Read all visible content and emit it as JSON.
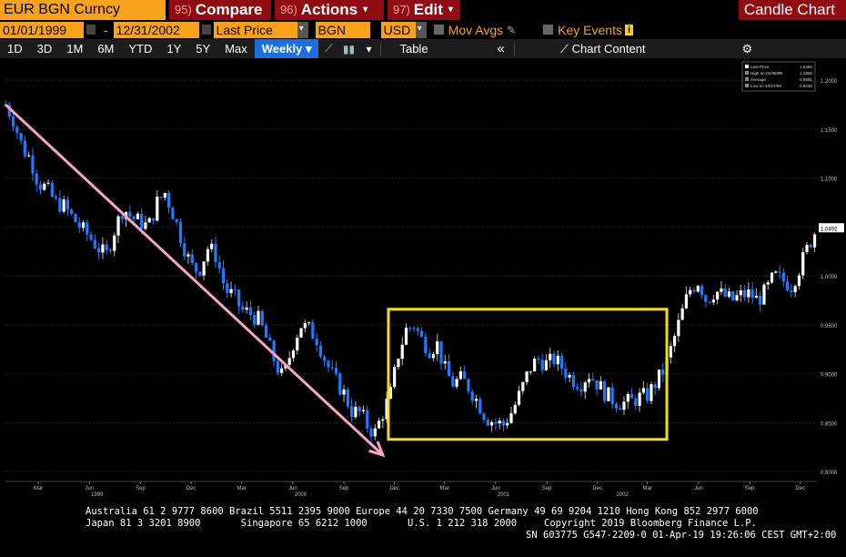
{
  "header": {
    "ticker": "EUR BGN Curncy",
    "compare": {
      "num": "95)",
      "label": "Compare"
    },
    "actions": {
      "num": "96)",
      "label": "Actions"
    },
    "edit": {
      "num": "97)",
      "label": "Edit"
    },
    "chart_type": "Candle Chart"
  },
  "controls": {
    "start_date": "01/01/1999",
    "end_date": "12/31/2002",
    "field": "Last Price",
    "security": "BGN",
    "currency": "USD",
    "mov_avgs": "Mov Avgs",
    "key_events": "Key Events",
    "key_events_badge": "i"
  },
  "toolbar": {
    "periods": [
      "1D",
      "3D",
      "1M",
      "6M",
      "YTD",
      "1Y",
      "5Y",
      "Max"
    ],
    "frequency": "Weekly",
    "table": "Table",
    "collapse": "«",
    "chart_content": "Chart Content",
    "settings": "⚙"
  },
  "legend": [
    "Last Price",
    "High on 01/08/99",
    "Average",
    "Low on 10/27/00"
  ],
  "legend_values": [
    "1.0492",
    "1.1900",
    "0.9591",
    "0.8230"
  ],
  "last_price_tag": "1.0492",
  "colors": {
    "up": "#ffffff",
    "down": "#1e7bff",
    "trend_arrow": "#f5a3c7",
    "box": "#f5e000",
    "header_orange": "#f7a21b",
    "header_red": "#8e0c12"
  },
  "footer": {
    "line1": "Australia 61 2 9777 8600 Brazil 5511 2395 9000 Europe 44 20 7330 7500 Germany 49 69 9204 1210 Hong Kong 852 2977 6000",
    "line2a": "Japan 81 3 3201 8900       Singapore 65 6212 1000       U.S. 1 212 318 2000",
    "line2b": "Copyright 2019 Bloomberg Finance L.P.",
    "line3": "SN 603775 G547-2209-0 01-Apr-19 19:26:06 CEST GMT+2:00"
  },
  "chart_data": {
    "type": "candlestick",
    "series": "EUR BGN Curncy weekly",
    "ylim": [
      0.79,
      1.215
    ],
    "yticks": [
      0.8,
      0.85,
      0.9,
      0.95,
      1.0,
      1.05,
      1.1,
      1.15,
      1.2
    ],
    "ytick_labels": [
      "0.8000",
      "0.8500",
      "0.9000",
      "0.9500",
      "1.0000",
      "1.0500",
      "1.1000",
      "1.1500",
      "1.2000"
    ],
    "xlim": [
      "1999-01-01",
      "2002-12-31"
    ],
    "month_ticks": [
      {
        "date": "1999-03-01",
        "label": "Mar"
      },
      {
        "date": "1999-06-01",
        "label": "Jun"
      },
      {
        "date": "1999-09-01",
        "label": "Sep"
      },
      {
        "date": "1999-12-01",
        "label": "Dec"
      },
      {
        "date": "2000-03-01",
        "label": "Mar"
      },
      {
        "date": "2000-06-01",
        "label": "Jun"
      },
      {
        "date": "2000-09-01",
        "label": "Sep"
      },
      {
        "date": "2000-12-01",
        "label": "Dec"
      },
      {
        "date": "2001-03-01",
        "label": "Mar"
      },
      {
        "date": "2001-06-01",
        "label": "Jun"
      },
      {
        "date": "2001-09-01",
        "label": "Sep"
      },
      {
        "date": "2001-12-01",
        "label": "Dec"
      },
      {
        "date": "2002-03-01",
        "label": "Mar"
      },
      {
        "date": "2002-06-01",
        "label": "Jun"
      },
      {
        "date": "2002-09-01",
        "label": "Sep"
      },
      {
        "date": "2002-12-01",
        "label": "Dec"
      }
    ],
    "year_ticks": [
      {
        "date": "1999-06-15",
        "label": "1999"
      },
      {
        "date": "2000-06-15",
        "label": "2000"
      },
      {
        "date": "2001-06-15",
        "label": "2001"
      },
      {
        "date": "2002-01-15",
        "label": "2002"
      }
    ],
    "close_path": [
      [
        "1999-01-01",
        1.175
      ],
      [
        "1999-01-15",
        1.16
      ],
      [
        "1999-02-01",
        1.13
      ],
      [
        "1999-02-15",
        1.12
      ],
      [
        "1999-03-01",
        1.095
      ],
      [
        "1999-03-15",
        1.09
      ],
      [
        "1999-04-01",
        1.075
      ],
      [
        "1999-04-15",
        1.072
      ],
      [
        "1999-05-01",
        1.06
      ],
      [
        "1999-05-15",
        1.05
      ],
      [
        "1999-06-01",
        1.04
      ],
      [
        "1999-06-15",
        1.03
      ],
      [
        "1999-07-01",
        1.02
      ],
      [
        "1999-07-15",
        1.045
      ],
      [
        "1999-08-01",
        1.07
      ],
      [
        "1999-08-15",
        1.06
      ],
      [
        "1999-09-01",
        1.055
      ],
      [
        "1999-09-15",
        1.05
      ],
      [
        "1999-10-01",
        1.075
      ],
      [
        "1999-10-15",
        1.085
      ],
      [
        "1999-11-01",
        1.06
      ],
      [
        "1999-11-15",
        1.035
      ],
      [
        "1999-12-01",
        1.01
      ],
      [
        "1999-12-15",
        1.005
      ],
      [
        "2000-01-01",
        1.03
      ],
      [
        "2000-01-15",
        1.02
      ],
      [
        "2000-02-01",
        0.985
      ],
      [
        "2000-02-15",
        0.98
      ],
      [
        "2000-03-01",
        0.965
      ],
      [
        "2000-03-15",
        0.962
      ],
      [
        "2000-04-01",
        0.955
      ],
      [
        "2000-04-15",
        0.935
      ],
      [
        "2000-05-01",
        0.91
      ],
      [
        "2000-05-15",
        0.895
      ],
      [
        "2000-06-01",
        0.93
      ],
      [
        "2000-06-15",
        0.95
      ],
      [
        "2000-07-01",
        0.945
      ],
      [
        "2000-07-15",
        0.935
      ],
      [
        "2000-08-01",
        0.91
      ],
      [
        "2000-08-15",
        0.895
      ],
      [
        "2000-09-01",
        0.88
      ],
      [
        "2000-09-15",
        0.862
      ],
      [
        "2000-10-01",
        0.86
      ],
      [
        "2000-10-15",
        0.845
      ],
      [
        "2000-10-27",
        0.84
      ],
      [
        "2000-11-10",
        0.86
      ],
      [
        "2000-11-24",
        0.88
      ],
      [
        "2000-12-08",
        0.92
      ],
      [
        "2000-12-22",
        0.945
      ],
      [
        "2001-01-05",
        0.95
      ],
      [
        "2001-01-19",
        0.935
      ],
      [
        "2001-02-02",
        0.925
      ],
      [
        "2001-02-16",
        0.93
      ],
      [
        "2001-03-01",
        0.905
      ],
      [
        "2001-03-15",
        0.89
      ],
      [
        "2001-04-01",
        0.895
      ],
      [
        "2001-04-15",
        0.885
      ],
      [
        "2001-05-01",
        0.87
      ],
      [
        "2001-05-15",
        0.855
      ],
      [
        "2001-06-01",
        0.85
      ],
      [
        "2001-06-15",
        0.848
      ],
      [
        "2001-07-01",
        0.862
      ],
      [
        "2001-07-15",
        0.88
      ],
      [
        "2001-08-01",
        0.905
      ],
      [
        "2001-08-15",
        0.915
      ],
      [
        "2001-09-01",
        0.91
      ],
      [
        "2001-09-15",
        0.915
      ],
      [
        "2001-10-01",
        0.905
      ],
      [
        "2001-10-15",
        0.895
      ],
      [
        "2001-11-01",
        0.89
      ],
      [
        "2001-11-15",
        0.9
      ],
      [
        "2001-12-01",
        0.89
      ],
      [
        "2001-12-15",
        0.88
      ],
      [
        "2002-01-01",
        0.872
      ],
      [
        "2002-01-15",
        0.87
      ],
      [
        "2002-02-01",
        0.872
      ],
      [
        "2002-02-15",
        0.876
      ],
      [
        "2002-03-01",
        0.878
      ],
      [
        "2002-03-15",
        0.89
      ],
      [
        "2002-04-01",
        0.905
      ],
      [
        "2002-04-15",
        0.93
      ],
      [
        "2002-05-01",
        0.96
      ],
      [
        "2002-05-15",
        0.985
      ],
      [
        "2002-06-01",
        0.995
      ],
      [
        "2002-06-15",
        0.975
      ],
      [
        "2002-07-01",
        0.985
      ],
      [
        "2002-07-15",
        0.98
      ],
      [
        "2002-08-01",
        0.975
      ],
      [
        "2002-08-15",
        0.98
      ],
      [
        "2002-09-01",
        0.982
      ],
      [
        "2002-09-15",
        0.975
      ],
      [
        "2002-10-01",
        0.985
      ],
      [
        "2002-10-15",
        1.0
      ],
      [
        "2002-11-01",
        0.995
      ],
      [
        "2002-11-15",
        0.99
      ],
      [
        "2002-12-01",
        1.01
      ],
      [
        "2002-12-15",
        1.03
      ],
      [
        "2002-12-31",
        1.049
      ]
    ]
  }
}
